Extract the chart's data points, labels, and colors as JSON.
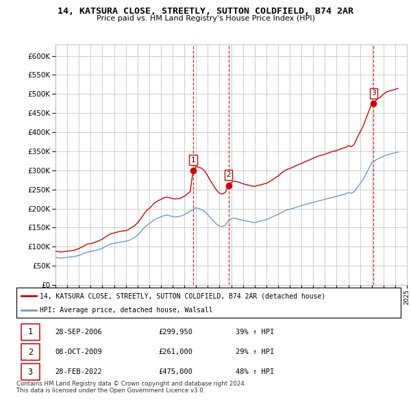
{
  "title": "14, KATSURA CLOSE, STREETLY, SUTTON COLDFIELD, B74 2AR",
  "subtitle": "Price paid vs. HM Land Registry's House Price Index (HPI)",
  "legend_label_red": "14, KATSURA CLOSE, STREETLY, SUTTON COLDFIELD, B74 2AR (detached house)",
  "legend_label_blue": "HPI: Average price, detached house, Walsall",
  "transactions": [
    {
      "num": 1,
      "date": "28-SEP-2006",
      "price": "£299,950",
      "hpi": "39% ↑ HPI",
      "year": 2006.74,
      "price_val": 299950
    },
    {
      "num": 2,
      "date": "08-OCT-2009",
      "price": "£261,000",
      "hpi": "29% ↑ HPI",
      "year": 2009.77,
      "price_val": 261000
    },
    {
      "num": 3,
      "date": "28-FEB-2022",
      "price": "£475,000",
      "hpi": "48% ↑ HPI",
      "year": 2022.16,
      "price_val": 475000
    }
  ],
  "copyright": "Contains HM Land Registry data © Crown copyright and database right 2024.\nThis data is licensed under the Open Government Licence v3.0.",
  "ylim": [
    0,
    630000
  ],
  "yticks": [
    0,
    50000,
    100000,
    150000,
    200000,
    250000,
    300000,
    350000,
    400000,
    450000,
    500000,
    550000,
    600000
  ],
  "red_color": "#cc0000",
  "blue_color": "#6699cc",
  "vline_color": "#cc0000",
  "grid_color": "#cccccc",
  "bg_color": "#ffffff",
  "hpi_red_data": {
    "years": [
      1995.0,
      1995.25,
      1995.5,
      1995.75,
      1996.0,
      1996.25,
      1996.5,
      1996.75,
      1997.0,
      1997.25,
      1997.5,
      1997.75,
      1998.0,
      1998.25,
      1998.5,
      1998.75,
      1999.0,
      1999.25,
      1999.5,
      1999.75,
      2000.0,
      2000.25,
      2000.5,
      2000.75,
      2001.0,
      2001.25,
      2001.5,
      2001.75,
      2002.0,
      2002.25,
      2002.5,
      2002.75,
      2003.0,
      2003.25,
      2003.5,
      2003.75,
      2004.0,
      2004.25,
      2004.5,
      2004.75,
      2005.0,
      2005.25,
      2005.5,
      2005.75,
      2006.0,
      2006.25,
      2006.5,
      2006.75,
      2007.0,
      2007.25,
      2007.5,
      2007.75,
      2008.0,
      2008.25,
      2008.5,
      2008.75,
      2009.0,
      2009.25,
      2009.5,
      2009.75,
      2010.0,
      2010.25,
      2010.5,
      2010.75,
      2011.0,
      2011.25,
      2011.5,
      2011.75,
      2012.0,
      2012.25,
      2012.5,
      2012.75,
      2013.0,
      2013.25,
      2013.5,
      2013.75,
      2014.0,
      2014.25,
      2014.5,
      2014.75,
      2015.0,
      2015.25,
      2015.5,
      2015.75,
      2016.0,
      2016.25,
      2016.5,
      2016.75,
      2017.0,
      2017.25,
      2017.5,
      2017.75,
      2018.0,
      2018.25,
      2018.5,
      2018.75,
      2019.0,
      2019.25,
      2019.5,
      2019.75,
      2020.0,
      2020.25,
      2020.5,
      2020.75,
      2021.0,
      2021.25,
      2021.5,
      2021.75,
      2022.0,
      2022.25,
      2022.5,
      2022.75,
      2023.0,
      2023.25,
      2023.5,
      2023.75,
      2024.0,
      2024.25
    ],
    "values": [
      88000,
      87000,
      86000,
      87000,
      88000,
      89000,
      90000,
      92000,
      95000,
      99000,
      103000,
      107000,
      108000,
      110000,
      113000,
      116000,
      120000,
      125000,
      130000,
      134000,
      136000,
      138000,
      140000,
      141000,
      142000,
      145000,
      150000,
      155000,
      162000,
      172000,
      183000,
      194000,
      200000,
      208000,
      216000,
      220000,
      224000,
      228000,
      230000,
      228000,
      226000,
      225000,
      226000,
      228000,
      232000,
      238000,
      244000,
      300000,
      310000,
      308000,
      305000,
      298000,
      285000,
      272000,
      260000,
      248000,
      240000,
      238000,
      242000,
      261000,
      268000,
      272000,
      270000,
      268000,
      265000,
      263000,
      261000,
      259000,
      258000,
      260000,
      262000,
      264000,
      266000,
      270000,
      275000,
      280000,
      285000,
      292000,
      298000,
      302000,
      305000,
      308000,
      312000,
      315000,
      318000,
      322000,
      325000,
      328000,
      332000,
      335000,
      338000,
      340000,
      342000,
      345000,
      348000,
      350000,
      352000,
      355000,
      358000,
      360000,
      365000,
      362000,
      368000,
      385000,
      400000,
      415000,
      435000,
      455000,
      475000,
      480000,
      488000,
      492000,
      500000,
      505000,
      508000,
      510000,
      512000,
      515000
    ]
  },
  "hpi_blue_data": {
    "years": [
      1995.0,
      1995.25,
      1995.5,
      1995.75,
      1996.0,
      1996.25,
      1996.5,
      1996.75,
      1997.0,
      1997.25,
      1997.5,
      1997.75,
      1998.0,
      1998.25,
      1998.5,
      1998.75,
      1999.0,
      1999.25,
      1999.5,
      1999.75,
      2000.0,
      2000.25,
      2000.5,
      2000.75,
      2001.0,
      2001.25,
      2001.5,
      2001.75,
      2002.0,
      2002.25,
      2002.5,
      2002.75,
      2003.0,
      2003.25,
      2003.5,
      2003.75,
      2004.0,
      2004.25,
      2004.5,
      2004.75,
      2005.0,
      2005.25,
      2005.5,
      2005.75,
      2006.0,
      2006.25,
      2006.5,
      2006.75,
      2007.0,
      2007.25,
      2007.5,
      2007.75,
      2008.0,
      2008.25,
      2008.5,
      2008.75,
      2009.0,
      2009.25,
      2009.5,
      2009.75,
      2010.0,
      2010.25,
      2010.5,
      2010.75,
      2011.0,
      2011.25,
      2011.5,
      2011.75,
      2012.0,
      2012.25,
      2012.5,
      2012.75,
      2013.0,
      2013.25,
      2013.5,
      2013.75,
      2014.0,
      2014.25,
      2014.5,
      2014.75,
      2015.0,
      2015.25,
      2015.5,
      2015.75,
      2016.0,
      2016.25,
      2016.5,
      2016.75,
      2017.0,
      2017.25,
      2017.5,
      2017.75,
      2018.0,
      2018.25,
      2018.5,
      2018.75,
      2019.0,
      2019.25,
      2019.5,
      2019.75,
      2020.0,
      2020.25,
      2020.5,
      2020.75,
      2021.0,
      2021.25,
      2021.5,
      2021.75,
      2022.0,
      2022.25,
      2022.5,
      2022.75,
      2023.0,
      2023.25,
      2023.5,
      2023.75,
      2024.0,
      2024.25
    ],
    "values": [
      72000,
      71000,
      70000,
      71000,
      72000,
      73000,
      74000,
      75000,
      77000,
      80000,
      83000,
      86000,
      87000,
      89000,
      91000,
      93000,
      96000,
      100000,
      104000,
      107000,
      109000,
      110000,
      112000,
      113000,
      114000,
      116000,
      120000,
      124000,
      130000,
      138000,
      147000,
      155000,
      160000,
      166000,
      172000,
      175000,
      178000,
      181000,
      183000,
      181000,
      179000,
      178000,
      179000,
      181000,
      184000,
      188000,
      193000,
      198000,
      202000,
      200000,
      197000,
      192000,
      184000,
      175000,
      167000,
      159000,
      154000,
      153000,
      156000,
      168000,
      173000,
      175000,
      173000,
      171000,
      169000,
      168000,
      166000,
      164000,
      163000,
      165000,
      167000,
      169000,
      171000,
      174000,
      178000,
      181000,
      185000,
      189000,
      193000,
      196000,
      198000,
      200000,
      203000,
      205000,
      208000,
      210000,
      212000,
      214000,
      216000,
      218000,
      220000,
      222000,
      224000,
      226000,
      228000,
      230000,
      232000,
      234000,
      236000,
      238000,
      242000,
      240000,
      244000,
      255000,
      265000,
      275000,
      290000,
      305000,
      320000,
      325000,
      330000,
      333000,
      337000,
      340000,
      342000,
      344000,
      346000,
      348000
    ]
  },
  "x_min": 1995,
  "x_max": 2025
}
